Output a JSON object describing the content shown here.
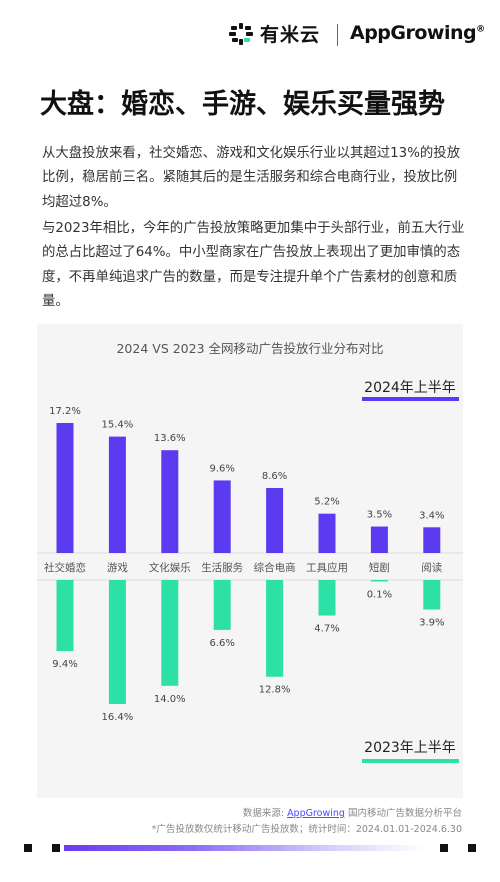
{
  "header": {
    "brand_cn": "有米云",
    "brand_en": "AppGrowing",
    "brand_mark": "®"
  },
  "title": "大盘：婚恋、手游、娱乐买量强势",
  "paragraphs": [
    "从大盘投放来看，社交婚恋、游戏和文化娱乐行业以其超过13%的投放比例，稳居前三名。紧随其后的是生活服务和综合电商行业，投放比例均超过8%。",
    "与2023年相比，今年的广告投放策略更加集中于头部行业，前五大行业的总占比超过了64%。中小型商家在广告投放上表现出了更加审慎的态度，不再单纯追求广告的数量，而是专注提升单个广告素材的创意和质量。"
  ],
  "chart_data": {
    "type": "bar",
    "title": "2024 VS 2023 全网移动广告投放行业分布对比",
    "categories": [
      "社交婚恋",
      "游戏",
      "文化娱乐",
      "生活服务",
      "综合电商",
      "工具应用",
      "短剧",
      "阅读"
    ],
    "series": [
      {
        "name": "2024年上半年",
        "values": [
          17.2,
          15.4,
          13.6,
          9.6,
          8.6,
          5.2,
          3.5,
          3.4
        ],
        "labels": [
          "17.2%",
          "15.4%",
          "13.6%",
          "9.6%",
          "8.6%",
          "5.2%",
          "3.5%",
          "3.4%"
        ],
        "color": "#5b3af0"
      },
      {
        "name": "2023年上半年",
        "values": [
          9.4,
          16.4,
          14.0,
          6.6,
          12.8,
          4.7,
          0.1,
          3.9
        ],
        "labels": [
          "9.4%",
          "16.4%",
          "14.0%",
          "6.6%",
          "12.8%",
          "4.7%",
          "0.1%",
          "3.9%"
        ],
        "color": "#2de0a5"
      }
    ],
    "ylim": [
      0,
      17.2
    ],
    "grid": false
  },
  "source": {
    "prefix": "数据来源:",
    "link": "AppGrowing",
    "suffix": "国内移动广告数据分析平台",
    "note": "*广告投放数仅统计移动广告投放数；统计时间：2024.01.01-2024.6.30"
  }
}
